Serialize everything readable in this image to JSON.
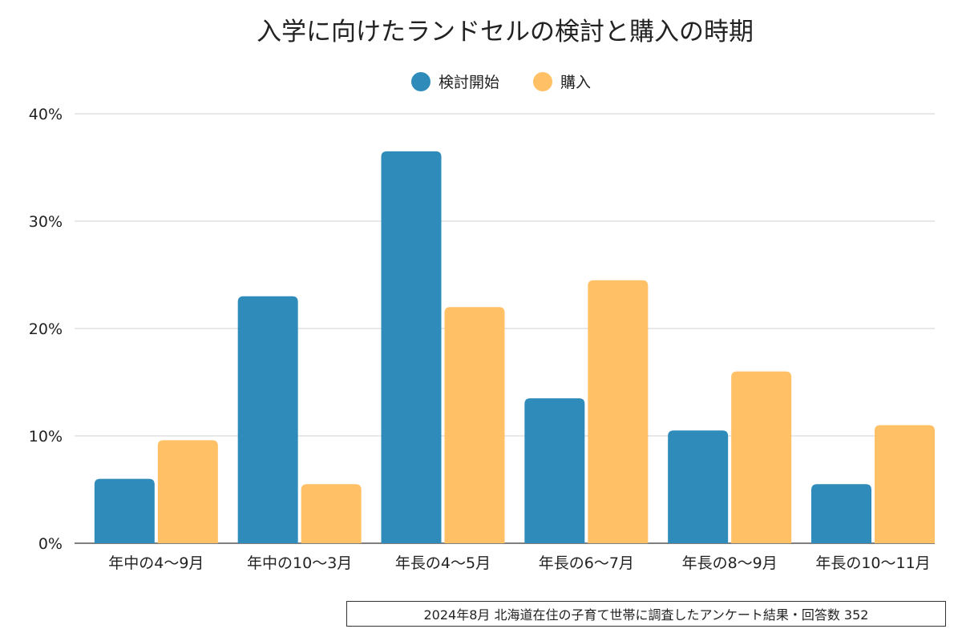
{
  "chart_data": {
    "type": "bar",
    "title": "入学に向けたランドセルの検討と購入の時期",
    "categories": [
      "年中の4〜9月",
      "年中の10〜3月",
      "年長の4〜5月",
      "年長の6〜7月",
      "年長の8〜9月",
      "年長の10〜11月"
    ],
    "series": [
      {
        "name": "検討開始",
        "color": "#2E8BBA",
        "values": [
          6.0,
          23.0,
          36.5,
          13.5,
          10.5,
          5.5
        ]
      },
      {
        "name": "購入",
        "color": "#FFC066",
        "values": [
          9.6,
          5.5,
          22.0,
          24.5,
          16.0,
          11.0
        ]
      }
    ],
    "ylim": [
      0,
      40
    ],
    "yticks": [
      0,
      10,
      20,
      30,
      40
    ],
    "ytick_labels": [
      "0%",
      "10%",
      "20%",
      "30%",
      "40%"
    ],
    "xlabel": "",
    "ylabel": "",
    "grid": true,
    "legend_position": "top-center"
  },
  "footnote": "2024年8月 北海道在住の子育て世帯に調査したアンケート結果・回答数 352"
}
